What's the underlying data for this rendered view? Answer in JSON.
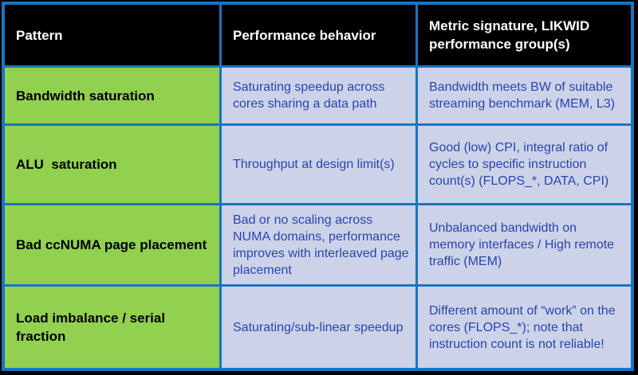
{
  "theme": {
    "border_blue": "#1b74bf",
    "pattern_green": "#92d050",
    "cell_lavender": "#ccd2e8",
    "cell_text_blue": "#2945ae",
    "header_bg": "#000000",
    "header_text": "#ffffff"
  },
  "table": {
    "columns": [
      {
        "label": "Pattern"
      },
      {
        "label": "Performance behavior"
      },
      {
        "label": "Metric signature, LIKWID performance group(s)"
      }
    ],
    "rows": [
      {
        "pattern": "Bandwidth saturation",
        "behavior": "Saturating speedup across cores sharing a data path",
        "metric": "Bandwidth meets BW of suitable streaming benchmark (MEM, L3)"
      },
      {
        "pattern": "ALU  saturation",
        "behavior": "Throughput at design limit(s)",
        "metric": "Good (low) CPI, integral ratio of cycles to specific instruction count(s) (FLOPS_*, DATA, CPI)"
      },
      {
        "pattern": "Bad ccNUMA page placement",
        "behavior": "Bad or no scaling across NUMA domains, performance improves with interleaved page placement",
        "metric": "Unbalanced bandwidth on memory interfaces / High remote traffic (MEM)"
      },
      {
        "pattern": "Load imbalance / serial fraction",
        "behavior": "Saturating/sub-linear speedup",
        "metric": "Different amount of “work” on the cores (FLOPS_*); note that instruction count is not reliable!"
      }
    ]
  }
}
